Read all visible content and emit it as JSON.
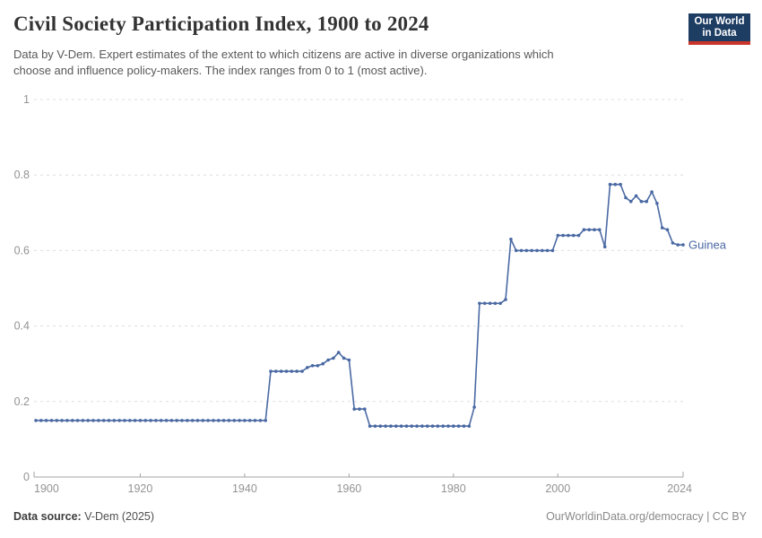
{
  "header": {
    "title": "Civil Society Participation Index, 1900 to 2024",
    "subtitle_lines": [
      "Data by V-Dem. Expert estimates of the extent to which citizens are active in diverse organizations which",
      "choose and influence policy-makers. The index ranges from 0 to 1 (most active)."
    ],
    "logo": {
      "line1": "Our World",
      "line2": "in Data",
      "bg_color": "#1d3d63",
      "stripe_color": "#c8352b"
    }
  },
  "chart_data": {
    "type": "line",
    "title": "Civil Society Participation Index, 1900 to 2024",
    "xlabel": "",
    "ylabel": "",
    "x_range": [
      1900,
      2024
    ],
    "ylim": [
      0,
      1
    ],
    "y_ticks": [
      0,
      0.2,
      0.4,
      0.6,
      0.8,
      1
    ],
    "x_ticks": [
      1900,
      1920,
      1940,
      1960,
      1980,
      2000,
      2024
    ],
    "grid": "horizontal-dashed",
    "legend_position": "end-of-line-label",
    "colors": {
      "line": "#4a69a3",
      "gridline": "#dedede",
      "axis": "#a3a3a3",
      "tick_text": "#939393"
    },
    "series": [
      {
        "name": "Guinea",
        "color": "#4a69a3",
        "points": [
          [
            1900,
            0.15
          ],
          [
            1901,
            0.15
          ],
          [
            1902,
            0.15
          ],
          [
            1903,
            0.15
          ],
          [
            1904,
            0.15
          ],
          [
            1905,
            0.15
          ],
          [
            1906,
            0.15
          ],
          [
            1907,
            0.15
          ],
          [
            1908,
            0.15
          ],
          [
            1909,
            0.15
          ],
          [
            1910,
            0.15
          ],
          [
            1911,
            0.15
          ],
          [
            1912,
            0.15
          ],
          [
            1913,
            0.15
          ],
          [
            1914,
            0.15
          ],
          [
            1915,
            0.15
          ],
          [
            1916,
            0.15
          ],
          [
            1917,
            0.15
          ],
          [
            1918,
            0.15
          ],
          [
            1919,
            0.15
          ],
          [
            1920,
            0.15
          ],
          [
            1921,
            0.15
          ],
          [
            1922,
            0.15
          ],
          [
            1923,
            0.15
          ],
          [
            1924,
            0.15
          ],
          [
            1925,
            0.15
          ],
          [
            1926,
            0.15
          ],
          [
            1927,
            0.15
          ],
          [
            1928,
            0.15
          ],
          [
            1929,
            0.15
          ],
          [
            1930,
            0.15
          ],
          [
            1931,
            0.15
          ],
          [
            1932,
            0.15
          ],
          [
            1933,
            0.15
          ],
          [
            1934,
            0.15
          ],
          [
            1935,
            0.15
          ],
          [
            1936,
            0.15
          ],
          [
            1937,
            0.15
          ],
          [
            1938,
            0.15
          ],
          [
            1939,
            0.15
          ],
          [
            1940,
            0.15
          ],
          [
            1941,
            0.15
          ],
          [
            1942,
            0.15
          ],
          [
            1943,
            0.15
          ],
          [
            1944,
            0.15
          ],
          [
            1945,
            0.28
          ],
          [
            1946,
            0.28
          ],
          [
            1947,
            0.28
          ],
          [
            1948,
            0.28
          ],
          [
            1949,
            0.28
          ],
          [
            1950,
            0.28
          ],
          [
            1951,
            0.28
          ],
          [
            1952,
            0.29
          ],
          [
            1953,
            0.295
          ],
          [
            1954,
            0.295
          ],
          [
            1955,
            0.3
          ],
          [
            1956,
            0.31
          ],
          [
            1957,
            0.315
          ],
          [
            1958,
            0.33
          ],
          [
            1959,
            0.315
          ],
          [
            1960,
            0.31
          ],
          [
            1961,
            0.18
          ],
          [
            1962,
            0.18
          ],
          [
            1963,
            0.18
          ],
          [
            1964,
            0.135
          ],
          [
            1965,
            0.135
          ],
          [
            1966,
            0.135
          ],
          [
            1967,
            0.135
          ],
          [
            1968,
            0.135
          ],
          [
            1969,
            0.135
          ],
          [
            1970,
            0.135
          ],
          [
            1971,
            0.135
          ],
          [
            1972,
            0.135
          ],
          [
            1973,
            0.135
          ],
          [
            1974,
            0.135
          ],
          [
            1975,
            0.135
          ],
          [
            1976,
            0.135
          ],
          [
            1977,
            0.135
          ],
          [
            1978,
            0.135
          ],
          [
            1979,
            0.135
          ],
          [
            1980,
            0.135
          ],
          [
            1981,
            0.135
          ],
          [
            1982,
            0.135
          ],
          [
            1983,
            0.135
          ],
          [
            1984,
            0.185
          ],
          [
            1985,
            0.46
          ],
          [
            1986,
            0.46
          ],
          [
            1987,
            0.46
          ],
          [
            1988,
            0.46
          ],
          [
            1989,
            0.46
          ],
          [
            1990,
            0.47
          ],
          [
            1991,
            0.63
          ],
          [
            1992,
            0.6
          ],
          [
            1993,
            0.6
          ],
          [
            1994,
            0.6
          ],
          [
            1995,
            0.6
          ],
          [
            1996,
            0.6
          ],
          [
            1997,
            0.6
          ],
          [
            1998,
            0.6
          ],
          [
            1999,
            0.6
          ],
          [
            2000,
            0.64
          ],
          [
            2001,
            0.64
          ],
          [
            2002,
            0.64
          ],
          [
            2003,
            0.64
          ],
          [
            2004,
            0.64
          ],
          [
            2005,
            0.655
          ],
          [
            2006,
            0.655
          ],
          [
            2007,
            0.655
          ],
          [
            2008,
            0.655
          ],
          [
            2009,
            0.61
          ],
          [
            2010,
            0.775
          ],
          [
            2011,
            0.775
          ],
          [
            2012,
            0.775
          ],
          [
            2013,
            0.74
          ],
          [
            2014,
            0.73
          ],
          [
            2015,
            0.745
          ],
          [
            2016,
            0.73
          ],
          [
            2017,
            0.73
          ],
          [
            2018,
            0.755
          ],
          [
            2019,
            0.725
          ],
          [
            2020,
            0.66
          ],
          [
            2021,
            0.655
          ],
          [
            2022,
            0.62
          ],
          [
            2023,
            0.615
          ],
          [
            2024,
            0.615
          ]
        ]
      }
    ]
  },
  "footer": {
    "source_label": "Data source:",
    "source_value": " V-Dem (2025)",
    "credit": "OurWorldinData.org/democracy | CC BY"
  }
}
